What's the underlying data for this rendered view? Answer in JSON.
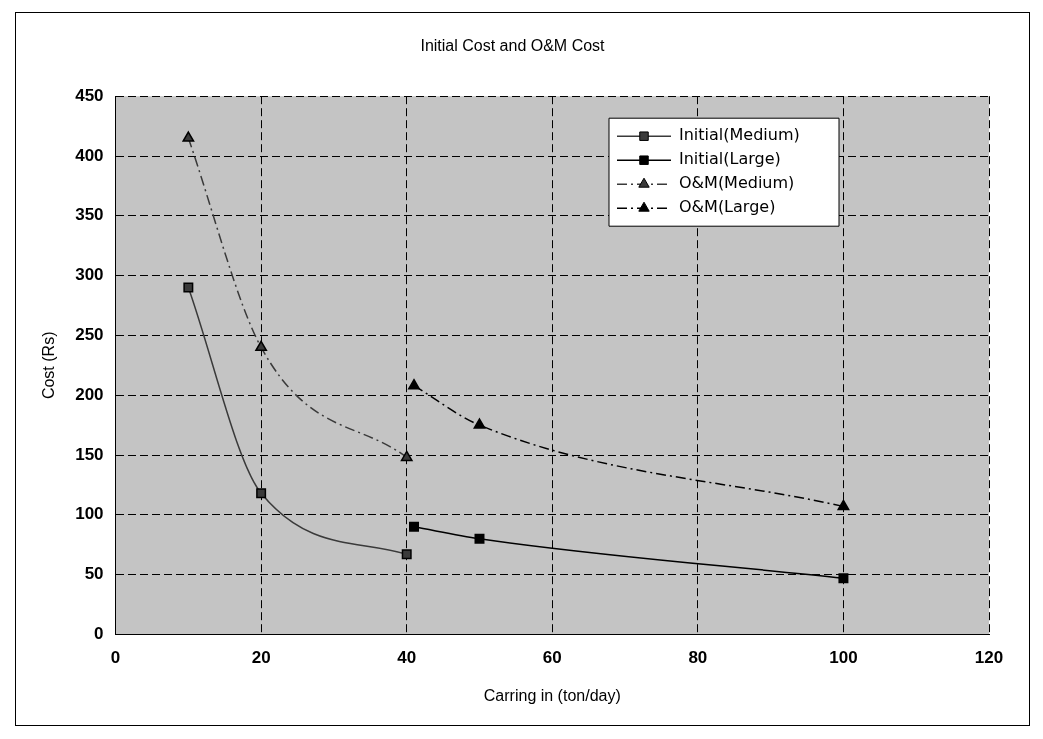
{
  "chart_data": {
    "type": "line",
    "title": "Initial Cost and O&M Cost",
    "xlabel": "Carring in (ton/day)",
    "ylabel": "Cost (Rs)",
    "xlim": [
      0,
      120
    ],
    "xticks": [
      0,
      20,
      40,
      60,
      80,
      100,
      120
    ],
    "ylim": [
      0,
      450
    ],
    "yticks": [
      0,
      50,
      100,
      150,
      200,
      250,
      300,
      350,
      400,
      450
    ],
    "grid": true,
    "legend": "top right",
    "series": [
      {
        "name": "Initial(Medium)",
        "color": "#3a3a3a",
        "marker": "square",
        "line_style": "solid",
        "x": [
          10,
          20,
          40
        ],
        "values": [
          290,
          118,
          67
        ]
      },
      {
        "name": "Initial(Large)",
        "color": "#000000",
        "marker": "square",
        "line_style": "solid",
        "x": [
          41,
          50,
          100
        ],
        "values": [
          90,
          80,
          47
        ]
      },
      {
        "name": "O&M(Medium)",
        "color": "#3a3a3a",
        "marker": "triangle",
        "line_style": "dashed",
        "x": [
          10,
          20,
          40
        ],
        "values": [
          415,
          240,
          148
        ]
      },
      {
        "name": "O&M(Large)",
        "color": "#000000",
        "marker": "triangle",
        "line_style": "dashed",
        "x": [
          41,
          50,
          100
        ],
        "values": [
          208,
          175,
          107
        ]
      }
    ]
  }
}
